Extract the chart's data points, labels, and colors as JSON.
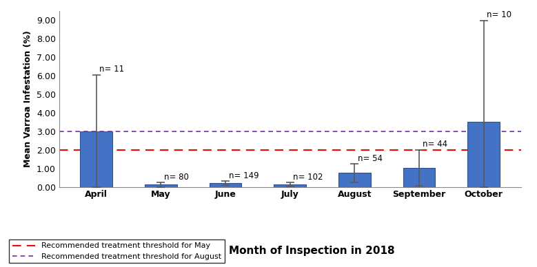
{
  "categories": [
    "April",
    "May",
    "June",
    "July",
    "August",
    "September",
    "October"
  ],
  "values": [
    3.0,
    0.12,
    0.2,
    0.14,
    0.75,
    1.03,
    3.52
  ],
  "errors_upper": [
    3.05,
    0.13,
    0.12,
    0.1,
    0.5,
    0.97,
    5.45
  ],
  "errors_lower": [
    3.0,
    0.12,
    0.12,
    0.1,
    0.5,
    0.97,
    3.52
  ],
  "n_labels": [
    "n= 11",
    "n= 80",
    "n= 149",
    "n= 102",
    "n= 54",
    "n= 44",
    "n= 10"
  ],
  "bar_color": "#4472C4",
  "bar_edge_color": "#2F528F",
  "error_color": "#595959",
  "threshold_may": 2.0,
  "threshold_august": 3.0,
  "threshold_may_color": "#FF0000",
  "threshold_august_color": "#7030A0",
  "ylabel": "Mean Varroa Infestation (%)",
  "xlabel": "Month of Inspection in 2018",
  "ylim": [
    0.0,
    9.5
  ],
  "yticks": [
    0.0,
    1.0,
    2.0,
    3.0,
    4.0,
    5.0,
    6.0,
    7.0,
    8.0,
    9.0
  ],
  "ytick_labels": [
    "0.00",
    "1.00",
    "2.00",
    "3.00",
    "4.00",
    "5.00",
    "6.00",
    "7.00",
    "8.00",
    "9.00"
  ],
  "legend_may_label": "Recommended treatment threshold for May",
  "legend_august_label": "Recommended treatment threshold for August",
  "ylabel_fontsize": 9,
  "xlabel_fontsize": 11,
  "tick_fontsize": 9,
  "n_label_fontsize": 8.5
}
